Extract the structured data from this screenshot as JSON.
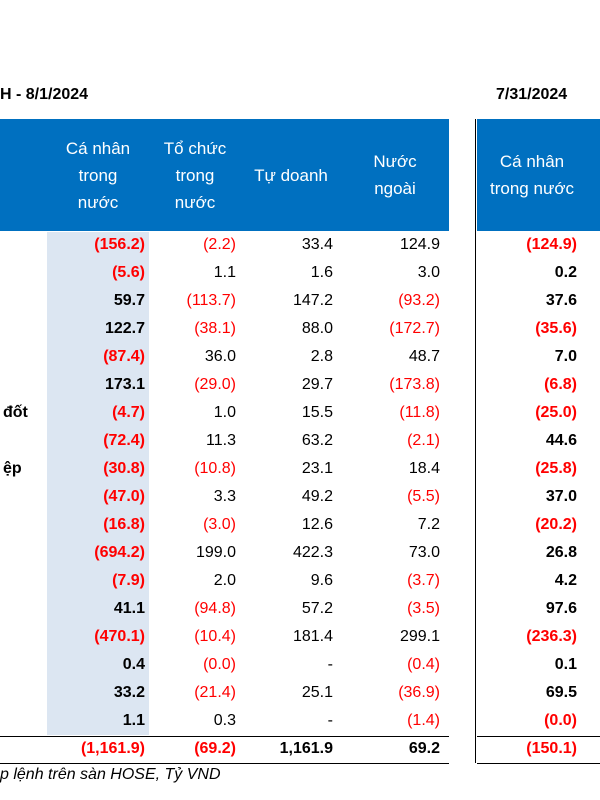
{
  "title_left": "H - 8/1/2024",
  "title_right": "7/31/2024",
  "headers_left": [
    "Cá nhân\ntrong\nnước",
    "Tổ chức\ntrong\nnước",
    "Tự doanh",
    "Nước\nngoài"
  ],
  "header_right": "Cá nhân\ntrong nước",
  "row_labels": [
    "",
    "",
    "",
    "",
    "",
    "",
    "đốt",
    "",
    "ệp",
    "",
    "",
    "",
    "",
    "",
    "",
    "",
    "",
    ""
  ],
  "rows": [
    [
      "(156.2)",
      "(2.2)",
      "33.4",
      "124.9",
      "(124.9)"
    ],
    [
      "(5.6)",
      "1.1",
      "1.6",
      "3.0",
      "0.2"
    ],
    [
      "59.7",
      "(113.7)",
      "147.2",
      "(93.2)",
      "37.6"
    ],
    [
      "122.7",
      "(38.1)",
      "88.0",
      "(172.7)",
      "(35.6)"
    ],
    [
      "(87.4)",
      "36.0",
      "2.8",
      "48.7",
      "7.0"
    ],
    [
      "173.1",
      "(29.0)",
      "29.7",
      "(173.8)",
      "(6.8)"
    ],
    [
      "(4.7)",
      "1.0",
      "15.5",
      "(11.8)",
      "(25.0)"
    ],
    [
      "(72.4)",
      "11.3",
      "63.2",
      "(2.1)",
      "44.6"
    ],
    [
      "(30.8)",
      "(10.8)",
      "23.1",
      "18.4",
      "(25.8)"
    ],
    [
      "(47.0)",
      "3.3",
      "49.2",
      "(5.5)",
      "37.0"
    ],
    [
      "(16.8)",
      "(3.0)",
      "12.6",
      "7.2",
      "(20.2)"
    ],
    [
      "(694.2)",
      "199.0",
      "422.3",
      "73.0",
      "26.8"
    ],
    [
      "(7.9)",
      "2.0",
      "9.6",
      "(3.7)",
      "4.2"
    ],
    [
      "41.1",
      "(94.8)",
      "57.2",
      "(3.5)",
      "97.6"
    ],
    [
      "(470.1)",
      "(10.4)",
      "181.4",
      "299.1",
      "(236.3)"
    ],
    [
      "0.4",
      "(0.0)",
      "-",
      "(0.4)",
      "0.1"
    ],
    [
      "33.2",
      "(21.4)",
      "25.1",
      "(36.9)",
      "69.5"
    ],
    [
      "1.1",
      "0.3",
      "-",
      "(1.4)",
      "(0.0)"
    ]
  ],
  "total": [
    "(1,161.9)",
    "(69.2)",
    "1,161.9",
    "69.2",
    "(150.1)"
  ],
  "footnote": "p lệnh trên sàn HOSE, Tỷ VND",
  "colors": {
    "header_bg": "#0070c0",
    "shade": "#dce6f2",
    "negative": "#ff0000"
  }
}
